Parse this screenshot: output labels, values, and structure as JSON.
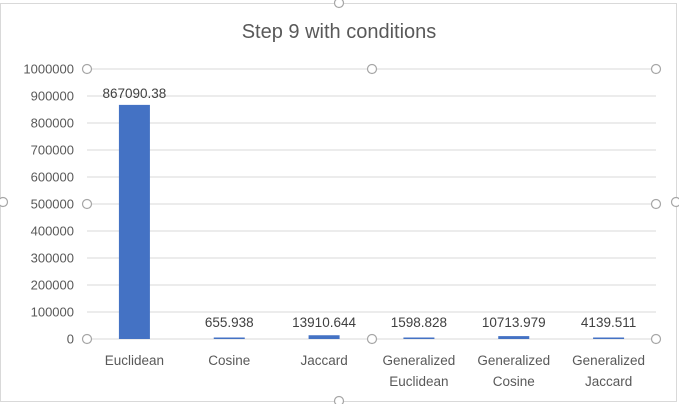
{
  "chart_data": {
    "type": "bar",
    "title": "Step 9 with conditions",
    "xlabel": "",
    "ylabel": "",
    "ylim": [
      0,
      1000000
    ],
    "yticks": [
      "0",
      "100000",
      "200000",
      "300000",
      "400000",
      "500000",
      "600000",
      "700000",
      "800000",
      "900000",
      "1000000"
    ],
    "categories": [
      [
        "Euclidean"
      ],
      [
        "Cosine"
      ],
      [
        "Jaccard"
      ],
      [
        "Generalized",
        "Euclidean"
      ],
      [
        "Generalized",
        "Cosine"
      ],
      [
        "Generalized",
        "Jaccard"
      ]
    ],
    "values": [
      867090.38,
      655.938,
      13910.644,
      1598.828,
      10713.979,
      4139.511
    ],
    "data_labels": [
      "867090.38",
      "655.938",
      "13910.644",
      "1598.828",
      "10713.979",
      "4139.511"
    ],
    "grid": true,
    "legend": "none",
    "bar_color": "#4472C4",
    "gridline_color": "#D9D9D9",
    "border_color": "#D9D9D9",
    "handle_color": "#A6A6A6"
  }
}
